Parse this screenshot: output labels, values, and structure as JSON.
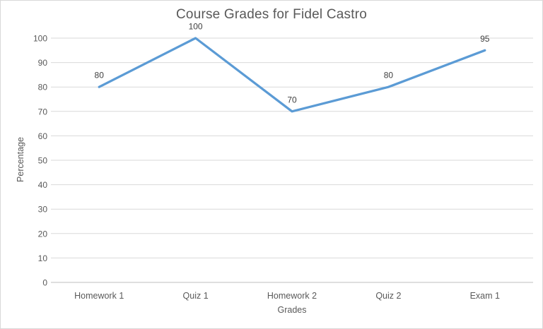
{
  "chart_data": {
    "type": "line",
    "title": "Course Grades for Fidel Castro",
    "categories": [
      "Homework 1",
      "Quiz 1",
      "Homework 2",
      "Quiz 2",
      "Exam 1"
    ],
    "values": [
      80,
      100,
      70,
      80,
      95
    ],
    "data_labels": [
      "80",
      "100",
      "70",
      "80",
      "95"
    ],
    "xlabel": "Grades",
    "ylabel": "Percentage",
    "ylim": [
      0,
      100
    ],
    "yticks": [
      0,
      10,
      20,
      30,
      40,
      50,
      60,
      70,
      80,
      90,
      100
    ],
    "grid": true,
    "legend_position": "none",
    "markers": false,
    "colors": {
      "line": "#5b9bd5",
      "gridline": "#d9d9d9",
      "axis_line": "#bfbfbf",
      "title_text": "#595959",
      "axis_text": "#595959",
      "data_label_text": "#404040",
      "background": "#ffffff",
      "chart_border": "#d9d9d9"
    }
  }
}
